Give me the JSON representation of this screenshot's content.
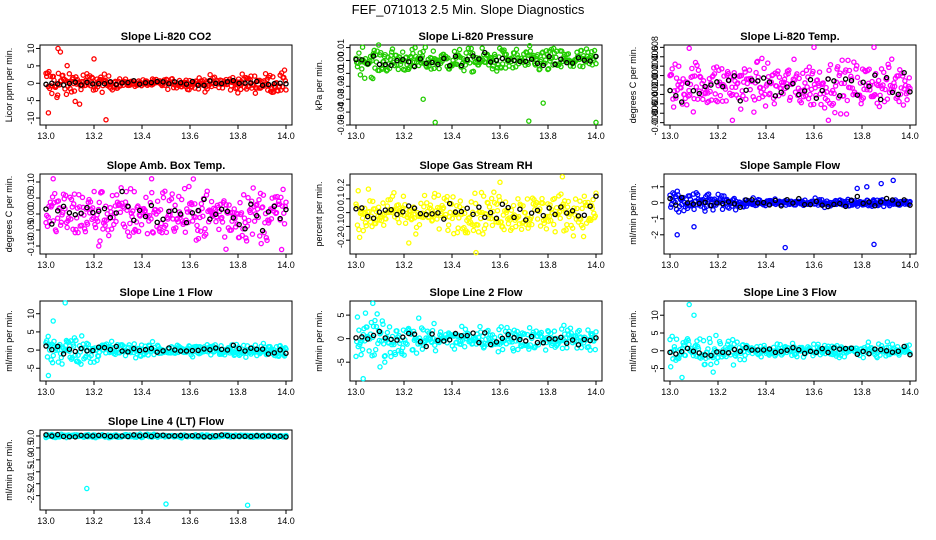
{
  "title": "FEF_071013  2.5 Min. Slope Diagnostics",
  "colors": {
    "cal": "#000000",
    "red": "#ff0000",
    "green": "#22cc00",
    "magenta": "#ff00ff",
    "yellow": "#ffff00",
    "blue": "#0000ff",
    "cyan": "#00ffff"
  },
  "chart_data": [
    {
      "type": "scatter",
      "title": "Slope Li-820 CO2",
      "ylabel": "Licor ppm per min.",
      "color": "red",
      "xlim": [
        13.0,
        14.0
      ],
      "xticks": [
        "13.0",
        "13.2",
        "13.4",
        "13.6",
        "13.8",
        "14.0"
      ],
      "ylim": [
        -12,
        11
      ],
      "yticks": [
        -10,
        -5,
        0,
        5,
        10
      ],
      "ytick_labels": [
        "-10",
        "-5",
        "0",
        "5",
        "10"
      ],
      "noise": [
        4,
        0.6,
        2.2
      ],
      "cal_spread": 0.6,
      "outliers": [
        [
          13.05,
          10
        ],
        [
          13.06,
          9
        ],
        [
          13.01,
          -8.5
        ],
        [
          13.25,
          -10.5
        ],
        [
          13.14,
          -6
        ],
        [
          13.2,
          7
        ]
      ]
    },
    {
      "type": "scatter",
      "title": "Slope Li-820 Pressure",
      "ylabel": "kPa per min.",
      "color": "green",
      "xlim": [
        13.0,
        14.0
      ],
      "xticks": [
        "13.0",
        "13.2",
        "13.4",
        "13.6",
        "13.8",
        "14.0"
      ],
      "ylim": [
        -0.05,
        0.012
      ],
      "yticks": [
        -0.05,
        -0.04,
        -0.03,
        -0.02,
        -0.01,
        0,
        0.01
      ],
      "ytick_labels": [
        "-0.05",
        "-0.04",
        "-0.03",
        "-0.02",
        "-0.01",
        "0.00",
        "0.01"
      ],
      "noise": [
        0.008,
        0.006,
        0.007
      ],
      "cal_spread": 0.004,
      "outliers": [
        [
          13.33,
          -0.048
        ],
        [
          13.72,
          -0.047
        ],
        [
          14.0,
          -0.048
        ],
        [
          13.28,
          -0.03
        ],
        [
          13.07,
          -0.014
        ],
        [
          13.78,
          -0.033
        ]
      ]
    },
    {
      "type": "scatter",
      "title": "Slope Li-820 Temp.",
      "ylabel": "degrees C per min.",
      "color": "magenta",
      "xlim": [
        13.0,
        14.0
      ],
      "xticks": [
        "13.0",
        "13.2",
        "13.4",
        "13.6",
        "13.8",
        "14.0"
      ],
      "ylim": [
        -0.0085,
        0.0085
      ],
      "yticks": [
        -0.008,
        -0.006,
        -0.004,
        -0.002,
        0,
        0.002,
        0.004,
        0.006,
        0.008
      ],
      "ytick_labels": [
        "-0.008",
        "-0.006",
        "-0.004",
        "-0.002",
        "0.000",
        "0.002",
        "0.004",
        "0.006",
        "0.008"
      ],
      "noise": [
        0.0035,
        0.0035,
        0.0035
      ],
      "cal_spread": 0.003,
      "outliers": [
        [
          13.6,
          0.008
        ],
        [
          13.85,
          0.008
        ],
        [
          13.66,
          -0.0075
        ],
        [
          13.26,
          -0.0075
        ],
        [
          13.08,
          0.0078
        ]
      ]
    },
    {
      "type": "scatter",
      "title": "Slope Amb. Box Temp.",
      "ylabel": "degrees C per min.",
      "color": "magenta",
      "xlim": [
        13.0,
        14.0
      ],
      "xticks": [
        "13.0",
        "13.2",
        "13.4",
        "13.6",
        "13.8",
        "14.0"
      ],
      "ylim": [
        -0.125,
        0.125
      ],
      "yticks": [
        -0.1,
        -0.05,
        0,
        0.05,
        0.1
      ],
      "ytick_labels": [
        "-0.10",
        "-0.05",
        "0.00",
        "0.05",
        "0.10"
      ],
      "noise": [
        0.06,
        0.06,
        0.06
      ],
      "cal_spread": 0.04,
      "outliers": [
        [
          13.44,
          0.11
        ],
        [
          13.75,
          -0.11
        ],
        [
          13.03,
          0.11
        ],
        [
          13.22,
          -0.1
        ]
      ]
    },
    {
      "type": "scatter",
      "title": "Slope Gas Stream RH",
      "ylabel": "percent per min.",
      "color": "yellow",
      "xlim": [
        13.0,
        14.0
      ],
      "xticks": [
        "13.0",
        "13.2",
        "13.4",
        "13.6",
        "13.8",
        "14.0"
      ],
      "ylim": [
        -0.3,
        0.28
      ],
      "yticks": [
        -0.2,
        -0.1,
        0,
        0.1,
        0.2
      ],
      "ytick_labels": [
        "-0.2",
        "-0.1",
        "0.0",
        "0.1",
        "0.2"
      ],
      "noise": [
        0.1,
        0.1,
        0.1
      ],
      "cal_spread": 0.08,
      "outliers": [
        [
          13.5,
          -0.29
        ],
        [
          13.86,
          0.26
        ],
        [
          13.22,
          -0.22
        ],
        [
          13.6,
          0.22
        ]
      ]
    },
    {
      "type": "scatter",
      "title": "Slope Sample Flow",
      "ylabel": "ml/min per min.",
      "color": "blue",
      "xlim": [
        13.0,
        14.0
      ],
      "xticks": [
        "13.0",
        "13.2",
        "13.4",
        "13.6",
        "13.8",
        "14.0"
      ],
      "ylim": [
        -3.2,
        1.8
      ],
      "yticks": [
        -2,
        -1,
        0,
        1
      ],
      "ytick_labels": [
        "-2",
        "-1",
        "0",
        "1"
      ],
      "noise": [
        0.6,
        0.15,
        0.15
      ],
      "cal_spread": 0.3,
      "outliers": [
        [
          13.48,
          -2.8
        ],
        [
          13.85,
          -2.6
        ],
        [
          13.93,
          1.4
        ],
        [
          13.78,
          0.9
        ],
        [
          13.82,
          1.0
        ],
        [
          13.88,
          1.2
        ],
        [
          13.1,
          -1.5
        ],
        [
          13.03,
          -2.0
        ]
      ]
    },
    {
      "type": "scatter",
      "title": "Slope Line 1 Flow",
      "ylabel": "ml/min per min.",
      "color": "cyan",
      "xlim": [
        13.0,
        14.0
      ],
      "xticks": [
        "13.0",
        "13.2",
        "13.4",
        "13.6",
        "13.8",
        "14.0"
      ],
      "ylim": [
        -8.5,
        13.5
      ],
      "yticks": [
        -5,
        0,
        5,
        10
      ],
      "ytick_labels": [
        "-5",
        "0",
        "5",
        "10"
      ],
      "noise": [
        4,
        1.2,
        1.3
      ],
      "cal_spread": 1.0,
      "outliers": [
        [
          13.08,
          13
        ],
        [
          13.03,
          8
        ],
        [
          13.01,
          -7
        ]
      ]
    },
    {
      "type": "scatter",
      "title": "Slope Line 2 Flow",
      "ylabel": "ml/min per min.",
      "color": "cyan",
      "xlim": [
        13.0,
        14.0
      ],
      "xticks": [
        "13.0",
        "13.2",
        "13.4",
        "13.6",
        "13.8",
        "14.0"
      ],
      "ylim": [
        -9,
        8
      ],
      "yticks": [
        -5,
        0,
        5
      ],
      "ytick_labels": [
        "-5",
        "0",
        "5"
      ],
      "noise": [
        4,
        1.8,
        1.8
      ],
      "cal_spread": 1.3,
      "outliers": [
        [
          13.03,
          -8.5
        ],
        [
          13.1,
          -6
        ],
        [
          13.07,
          7.5
        ],
        [
          13.12,
          -5
        ]
      ]
    },
    {
      "type": "scatter",
      "title": "Slope Line 3 Flow",
      "ylabel": "ml/min per min.",
      "color": "cyan",
      "xlim": [
        13.0,
        14.0
      ],
      "xticks": [
        "13.0",
        "13.2",
        "13.4",
        "13.6",
        "13.8",
        "14.0"
      ],
      "ylim": [
        -8.5,
        14
      ],
      "yticks": [
        -5,
        0,
        5,
        10
      ],
      "ytick_labels": [
        "-5",
        "0",
        "5",
        "10"
      ],
      "noise": [
        4,
        1.2,
        1.2
      ],
      "cal_spread": 1.0,
      "outliers": [
        [
          13.08,
          13
        ],
        [
          13.1,
          10
        ],
        [
          13.05,
          -7.5
        ],
        [
          13.18,
          -6
        ]
      ]
    },
    {
      "type": "scatter",
      "title": "Slope Line 4 (LT) Flow",
      "ylabel": "ml/min per min.",
      "color": "cyan",
      "xlim": [
        13.0,
        14.0
      ],
      "xticks": [
        "13.0",
        "13.2",
        "13.4",
        "13.6",
        "13.8",
        "14.0"
      ],
      "ylim": [
        -3.1,
        0.25
      ],
      "yticks": [
        -2.5,
        -2,
        -1.5,
        -1,
        -0.5,
        0
      ],
      "ytick_labels": [
        "-2.5",
        "-2.0",
        "-1.5",
        "-1.0",
        "-0.5",
        "0.0"
      ],
      "noise": [
        0.05,
        0.04,
        0.04
      ],
      "cal_spread": 0.04,
      "outliers": [
        [
          13.17,
          -2.2
        ],
        [
          13.5,
          -2.85
        ],
        [
          13.84,
          -2.9
        ]
      ]
    }
  ]
}
